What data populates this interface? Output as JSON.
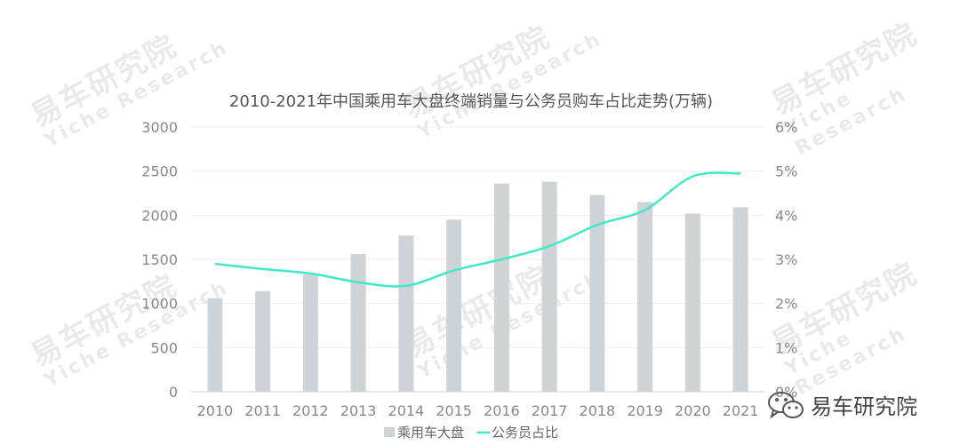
{
  "watermark": {
    "cn": "易车研究院",
    "en": "Yiche Research"
  },
  "brand": {
    "name": "易车研究院",
    "icon": "wechat-icon"
  },
  "chart_data": {
    "type": "bar",
    "title": "2010-2021年中国乘用车大盘终端销量与公务员购车占比走势(万辆)",
    "categories": [
      "2010",
      "2011",
      "2012",
      "2013",
      "2014",
      "2015",
      "2016",
      "2017",
      "2018",
      "2019",
      "2020",
      "2021"
    ],
    "series": [
      {
        "name": "乘用车大盘",
        "type": "bar",
        "axis": "left",
        "color": "#d0d3d6",
        "values": [
          1060,
          1140,
          1330,
          1560,
          1770,
          1950,
          2360,
          2380,
          2230,
          2150,
          2020,
          2090
        ]
      },
      {
        "name": "公务员占比",
        "type": "line",
        "axis": "right",
        "color": "#3ee8c9",
        "values": [
          2.9,
          2.78,
          2.68,
          2.48,
          2.4,
          2.75,
          3.0,
          3.3,
          3.78,
          4.12,
          4.88,
          4.95
        ]
      }
    ],
    "yleft": {
      "ticks": [
        "0",
        "500",
        "1000",
        "1500",
        "2000",
        "2500",
        "3000"
      ],
      "ylim": [
        0,
        3000
      ]
    },
    "yright": {
      "ticks": [
        "0%",
        "1%",
        "2%",
        "3%",
        "4%",
        "5%",
        "6%"
      ],
      "ylim": [
        0,
        6
      ]
    },
    "grid": true,
    "legend": "bottom"
  }
}
